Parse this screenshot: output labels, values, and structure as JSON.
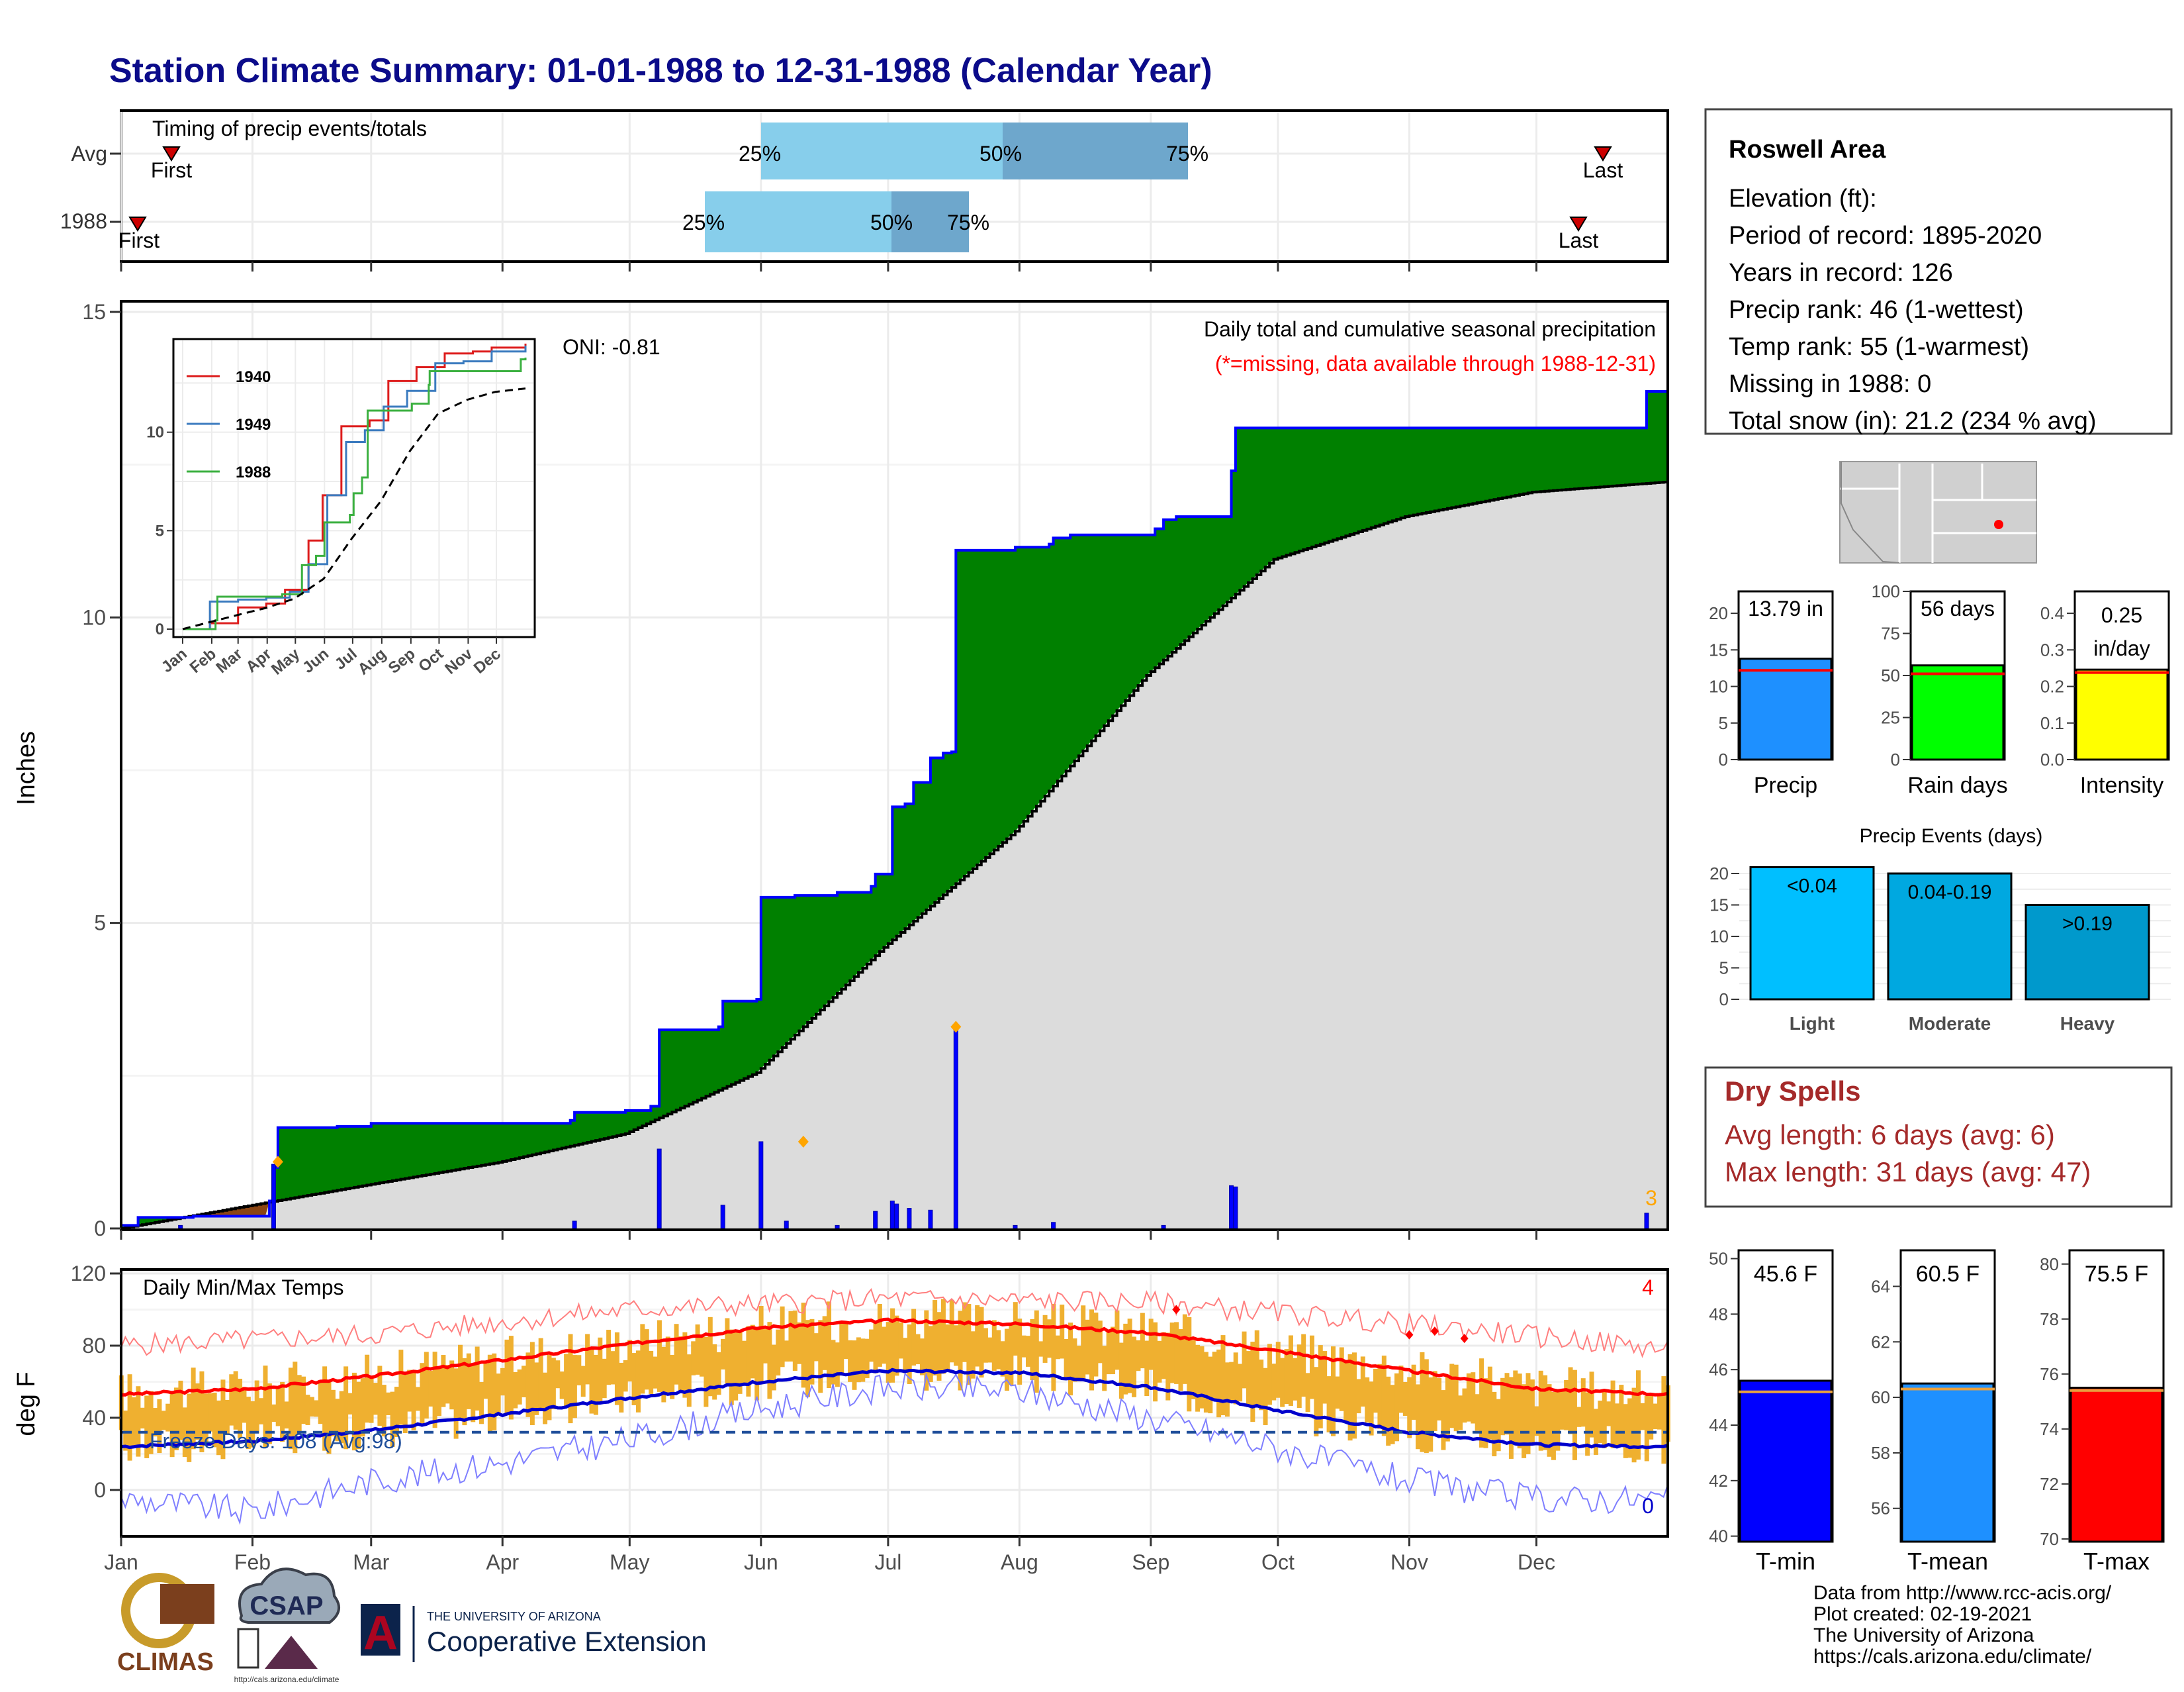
{
  "title": "Station Climate Summary: 01-01-1988 to 12-31-1988 (Calendar Year)",
  "colors": {
    "title": "#0b0b8a",
    "precip_fill": "#008000",
    "precip_line": "#0000ff",
    "avg_fill": "#dcdcdc",
    "q_light": "#87ceeb",
    "q_dark": "#6ea7cc",
    "temp_bar": "#efb030",
    "tmax": "#ff0000",
    "tmin": "#0000cc",
    "rec_max": "#ff7f7f",
    "rec_min": "#7f7fff",
    "dry": "#a52a2a",
    "missing_note": "#ff0000",
    "outlier": "#ffa500"
  },
  "timing_panel": {
    "title": "Timing of precip events/totals",
    "rows": [
      {
        "label": "Avg",
        "first": "First",
        "last": "Last",
        "p25": "25%",
        "p50": "50%",
        "p75": "75%"
      },
      {
        "label": "1988",
        "first": "First",
        "last": "Last",
        "p25": "25%",
        "p50": "50%",
        "p75": "75%"
      }
    ]
  },
  "precip_panel": {
    "title": "Daily total and cumulative seasonal precipitation",
    "note": "(*=missing, data available through 1988-12-31)",
    "oni": "ONI: -0.81",
    "ylabel": "Inches",
    "count_label": "3",
    "y_ticks": [
      "0",
      "5",
      "10",
      "15"
    ]
  },
  "inset": {
    "legend": [
      "1940",
      "1949",
      "1988"
    ],
    "y_ticks": [
      "0",
      "5",
      "10"
    ],
    "x_ticks": [
      "Jan",
      "Feb",
      "Mar",
      "Apr",
      "May",
      "Jun",
      "Jul",
      "Aug",
      "Sep",
      "Oct",
      "Nov",
      "Dec"
    ]
  },
  "temp_panel": {
    "title": "Daily Min/Max Temps",
    "ylabel": "deg F",
    "freeze": "Freeze Days: 108 (Avg:98)",
    "hot_count": "4",
    "cold_count": "0",
    "y_ticks": [
      "0",
      "40",
      "80",
      "120"
    ]
  },
  "months": [
    "Jan",
    "Feb",
    "Mar",
    "Apr",
    "May",
    "Jun",
    "Jul",
    "Aug",
    "Sep",
    "Oct",
    "Nov",
    "Dec"
  ],
  "station": {
    "name": "Roswell Area",
    "lines": [
      "Elevation (ft):",
      "Period of record: 1895-2020",
      "Years in record: 126",
      "Precip rank: 46 (1-wettest)",
      "Temp rank: 55 (1-warmest)",
      "Missing in 1988: 0",
      "Total snow (in): 21.2 (234 % avg)"
    ]
  },
  "mini_bars": [
    {
      "label": "Precip",
      "value_text": "13.79 in",
      "value": 13.79,
      "avg": 12.2,
      "ymax": 23,
      "ticks": [
        "0",
        "5",
        "10",
        "15",
        "20"
      ],
      "tick_vals": [
        0,
        5,
        10,
        15,
        20
      ],
      "color": "#1e90ff"
    },
    {
      "label": "Rain days",
      "value_text": "56 days",
      "value": 56,
      "avg": 51,
      "ymax": 100,
      "ticks": [
        "0",
        "25",
        "50",
        "75",
        "100"
      ],
      "tick_vals": [
        0,
        25,
        50,
        75,
        100
      ],
      "color": "#00ff00"
    },
    {
      "label": "Intensity",
      "value_text": "0.25",
      "value_text2": "in/day",
      "value": 0.246,
      "avg": 0.238,
      "ymax": 0.46,
      "ticks": [
        "0.0",
        "0.1",
        "0.2",
        "0.3",
        "0.4"
      ],
      "tick_vals": [
        0,
        0.1,
        0.2,
        0.3,
        0.4
      ],
      "color": "#ffff00"
    }
  ],
  "precip_events": {
    "title": "Precip Events (days)",
    "categories": [
      "Light",
      "Moderate",
      "Heavy"
    ],
    "bar_labels": [
      "<0.04",
      "0.04-0.19",
      ">0.19"
    ],
    "values": [
      21,
      20,
      15
    ],
    "colors": [
      "#00bfff",
      "#00a8e0",
      "#0099cc"
    ],
    "y_ticks": [
      "0",
      "5",
      "10",
      "15",
      "20"
    ]
  },
  "dry_spells": {
    "title": "Dry Spells",
    "avg": "Avg length: 6 days (avg: 6)",
    "max": "Max length: 31 days (avg: 47)"
  },
  "temp_bars": [
    {
      "label": "T-min",
      "value_text": "45.6 F",
      "value": 45.6,
      "avg": 45.2,
      "ymin": 39.8,
      "ymax": 50.3,
      "ticks": [
        "40",
        "42",
        "44",
        "46",
        "48",
        "50"
      ],
      "tick_vals": [
        40,
        42,
        44,
        46,
        48,
        50
      ],
      "color": "#0000ff"
    },
    {
      "label": "T-mean",
      "value_text": "60.5 F",
      "value": 60.5,
      "avg": 60.3,
      "ymin": 54.8,
      "ymax": 65.3,
      "ticks": [
        "56",
        "58",
        "60",
        "62",
        "64"
      ],
      "tick_vals": [
        56,
        58,
        60,
        62,
        64
      ],
      "color": "#1e90ff"
    },
    {
      "label": "T-max",
      "value_text": "75.5 F",
      "value": 75.5,
      "avg": 75.4,
      "ymin": 69.9,
      "ymax": 80.5,
      "ticks": [
        "70",
        "72",
        "74",
        "76",
        "78",
        "80"
      ],
      "tick_vals": [
        70,
        72,
        74,
        76,
        78,
        80
      ],
      "color": "#ff0000"
    }
  ],
  "footer": {
    "lines": [
      "Data from http://www.rcc-acis.org/",
      "Plot created: 02-19-2021",
      "The University of Arizona",
      "https://cals.arizona.edu/climate/"
    ],
    "climas": "CLIMAS",
    "csap": "CSAP",
    "csap_url": "http://cals.arizona.edu/climate",
    "ua_small": "THE UNIVERSITY OF ARIZONA",
    "ua_big": "Cooperative Extension",
    "ua_letter": "A"
  },
  "chart_data": [
    {
      "type": "area",
      "name": "cumulative_precip",
      "title": "Daily total and cumulative seasonal precipitation",
      "ylabel": "Inches",
      "ylim": [
        0,
        15
      ],
      "x_unit": "day_of_year",
      "observed_1988_steps": [
        [
          1,
          0.05
        ],
        [
          5,
          0.18
        ],
        [
          18,
          0.2
        ],
        [
          36,
          0.45
        ],
        [
          37,
          1.0
        ],
        [
          38,
          1.65
        ],
        [
          52,
          1.67
        ],
        [
          60,
          1.72
        ],
        [
          78,
          1.72
        ],
        [
          107,
          1.77
        ],
        [
          108,
          1.9
        ],
        [
          120,
          1.93
        ],
        [
          126,
          2.0
        ],
        [
          128,
          3.25
        ],
        [
          142,
          3.3
        ],
        [
          143,
          3.72
        ],
        [
          151,
          3.75
        ],
        [
          152,
          5.42
        ],
        [
          160,
          5.45
        ],
        [
          170,
          5.5
        ],
        [
          178,
          5.6
        ],
        [
          179,
          5.8
        ],
        [
          183,
          6.9
        ],
        [
          186,
          6.95
        ],
        [
          188,
          7.3
        ],
        [
          192,
          7.7
        ],
        [
          195,
          7.78
        ],
        [
          197,
          7.8
        ],
        [
          198,
          11.1
        ],
        [
          212,
          11.15
        ],
        [
          220,
          11.2
        ],
        [
          221,
          11.3
        ],
        [
          225,
          11.35
        ],
        [
          245,
          11.45
        ],
        [
          247,
          11.6
        ],
        [
          250,
          11.65
        ],
        [
          262,
          11.65
        ],
        [
          263,
          12.4
        ],
        [
          264,
          13.1
        ],
        [
          300,
          13.1
        ],
        [
          350,
          13.1
        ],
        [
          360,
          13.1
        ],
        [
          361,
          13.7
        ],
        [
          366,
          13.79
        ]
      ],
      "average_curve": [
        [
          1,
          0.0
        ],
        [
          31,
          0.37
        ],
        [
          59,
          0.71
        ],
        [
          90,
          1.08
        ],
        [
          120,
          1.55
        ],
        [
          151,
          2.55
        ],
        [
          181,
          4.6
        ],
        [
          212,
          6.5
        ],
        [
          243,
          9.05
        ],
        [
          273,
          10.95
        ],
        [
          304,
          11.65
        ],
        [
          334,
          12.05
        ],
        [
          366,
          12.22
        ]
      ],
      "daily_events": [
        [
          15,
          0.05
        ],
        [
          37,
          1.05
        ],
        [
          108,
          0.12
        ],
        [
          128,
          1.3
        ],
        [
          143,
          0.38
        ],
        [
          152,
          1.42
        ],
        [
          158,
          0.12
        ],
        [
          170,
          0.05
        ],
        [
          179,
          0.28
        ],
        [
          183,
          0.45
        ],
        [
          184,
          0.4
        ],
        [
          187,
          0.33
        ],
        [
          192,
          0.3
        ],
        [
          198,
          3.3
        ],
        [
          212,
          0.05
        ],
        [
          221,
          0.1
        ],
        [
          247,
          0.05
        ],
        [
          263,
          0.7
        ],
        [
          264,
          0.68
        ],
        [
          361,
          0.25
        ]
      ],
      "outliers": [
        [
          38,
          1.09
        ],
        [
          162,
          1.42
        ],
        [
          198,
          3.3
        ]
      ]
    },
    {
      "type": "line",
      "name": "cumulative_precip_analog_years",
      "ylim": [
        0,
        14.5
      ],
      "series": [
        {
          "name": "1940",
          "color": "#dd1c1c",
          "points": [
            [
              1,
              0
            ],
            [
              30,
              0.3
            ],
            [
              60,
              1.1
            ],
            [
              90,
              1.3
            ],
            [
              110,
              2.0
            ],
            [
              135,
              4.5
            ],
            [
              150,
              6.8
            ],
            [
              170,
              10.3
            ],
            [
              200,
              10.6
            ],
            [
              220,
              12.6
            ],
            [
              250,
              13.3
            ],
            [
              280,
              14.0
            ],
            [
              310,
              14.1
            ],
            [
              330,
              14.3
            ],
            [
              366,
              14.5
            ]
          ]
        },
        {
          "name": "1949",
          "color": "#3b7bbf",
          "points": [
            [
              1,
              0
            ],
            [
              30,
              1.4
            ],
            [
              60,
              1.5
            ],
            [
              90,
              1.6
            ],
            [
              115,
              1.9
            ],
            [
              135,
              3.3
            ],
            [
              155,
              6.8
            ],
            [
              175,
              9.5
            ],
            [
              195,
              10.1
            ],
            [
              215,
              11.3
            ],
            [
              240,
              12.1
            ],
            [
              270,
              13.5
            ],
            [
              300,
              13.6
            ],
            [
              330,
              14.1
            ],
            [
              366,
              14.4
            ]
          ]
        },
        {
          "name": "1988",
          "color": "#3bb040",
          "points": [
            [
              1,
              0
            ],
            [
              36,
              0.45
            ],
            [
              38,
              1.65
            ],
            [
              107,
              1.77
            ],
            [
              128,
              3.25
            ],
            [
              143,
              3.72
            ],
            [
              152,
              5.42
            ],
            [
              179,
              5.8
            ],
            [
              183,
              6.9
            ],
            [
              192,
              7.7
            ],
            [
              198,
              11.1
            ],
            [
              245,
              11.45
            ],
            [
              263,
              12.4
            ],
            [
              264,
              13.1
            ],
            [
              360,
              13.1
            ],
            [
              361,
              13.7
            ],
            [
              366,
              13.79
            ]
          ]
        },
        {
          "name": "average",
          "color": "#000000",
          "points": [
            [
              1,
              0
            ],
            [
              31,
              0.37
            ],
            [
              59,
              0.71
            ],
            [
              90,
              1.08
            ],
            [
              120,
              1.55
            ],
            [
              151,
              2.55
            ],
            [
              181,
              4.6
            ],
            [
              212,
              6.5
            ],
            [
              243,
              9.05
            ],
            [
              273,
              10.95
            ],
            [
              304,
              11.65
            ],
            [
              334,
              12.05
            ],
            [
              366,
              12.22
            ]
          ]
        }
      ]
    },
    {
      "type": "bar",
      "name": "daily_min_max_temps",
      "ylabel": "deg F",
      "ylim": [
        -25,
        120
      ],
      "freeze_line": 32,
      "avg_tmax": [
        [
          1,
          53
        ],
        [
          32,
          56
        ],
        [
          60,
          63
        ],
        [
          91,
          72
        ],
        [
          121,
          81
        ],
        [
          152,
          90
        ],
        [
          182,
          94
        ],
        [
          213,
          92
        ],
        [
          244,
          87
        ],
        [
          274,
          77
        ],
        [
          305,
          66
        ],
        [
          335,
          56
        ],
        [
          366,
          53
        ]
      ],
      "avg_tmin": [
        [
          1,
          24
        ],
        [
          32,
          27
        ],
        [
          60,
          33
        ],
        [
          91,
          42
        ],
        [
          121,
          51
        ],
        [
          152,
          60
        ],
        [
          182,
          66
        ],
        [
          213,
          65
        ],
        [
          244,
          57
        ],
        [
          274,
          44
        ],
        [
          305,
          32
        ],
        [
          335,
          25
        ],
        [
          366,
          24
        ]
      ],
      "record_max": [
        [
          1,
          80
        ],
        [
          60,
          86
        ],
        [
          121,
          100
        ],
        [
          182,
          106
        ],
        [
          244,
          104
        ],
        [
          305,
          92
        ],
        [
          366,
          78
        ]
      ],
      "record_min": [
        [
          1,
          -5
        ],
        [
          32,
          -12
        ],
        [
          60,
          5
        ],
        [
          91,
          15
        ],
        [
          121,
          28
        ],
        [
          152,
          45
        ],
        [
          182,
          57
        ],
        [
          213,
          55
        ],
        [
          244,
          40
        ],
        [
          274,
          23
        ],
        [
          305,
          5
        ],
        [
          335,
          -5
        ],
        [
          366,
          -5
        ]
      ],
      "record_markers": [
        [
          250,
          100
        ],
        [
          305,
          86
        ],
        [
          311,
          88
        ],
        [
          318,
          84
        ]
      ]
    },
    {
      "type": "bar",
      "name": "precip_events",
      "categories": [
        "Light",
        "Moderate",
        "Heavy"
      ],
      "values": [
        21,
        20,
        15
      ]
    },
    {
      "type": "bar",
      "name": "season_summary",
      "categories": [
        "Precip",
        "Rain days",
        "Intensity"
      ],
      "values": [
        13.79,
        56,
        0.25
      ]
    },
    {
      "type": "bar",
      "name": "temperature_summary",
      "categories": [
        "T-min",
        "T-mean",
        "T-max"
      ],
      "values": [
        45.6,
        60.5,
        75.5
      ]
    }
  ]
}
